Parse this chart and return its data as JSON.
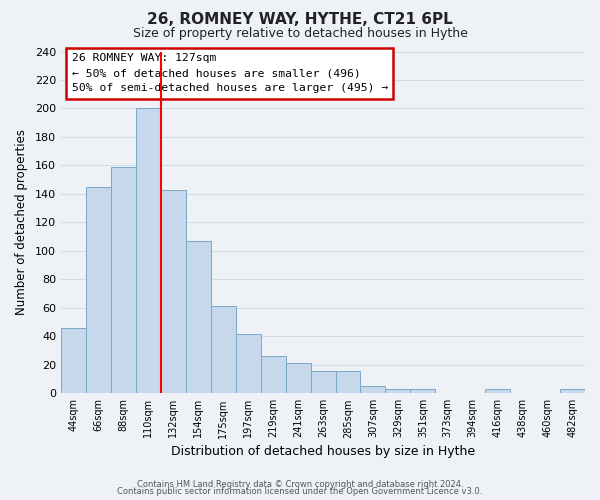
{
  "title": "26, ROMNEY WAY, HYTHE, CT21 6PL",
  "subtitle": "Size of property relative to detached houses in Hythe",
  "xlabel": "Distribution of detached houses by size in Hythe",
  "ylabel": "Number of detached properties",
  "bar_labels": [
    "44sqm",
    "66sqm",
    "88sqm",
    "110sqm",
    "132sqm",
    "154sqm",
    "175sqm",
    "197sqm",
    "219sqm",
    "241sqm",
    "263sqm",
    "285sqm",
    "307sqm",
    "329sqm",
    "351sqm",
    "373sqm",
    "394sqm",
    "416sqm",
    "438sqm",
    "460sqm",
    "482sqm"
  ],
  "bar_values": [
    46,
    145,
    159,
    200,
    143,
    107,
    61,
    42,
    26,
    21,
    16,
    16,
    5,
    3,
    3,
    0,
    0,
    3,
    0,
    0,
    3
  ],
  "bar_color": "#c8d8ec",
  "bar_edge_color": "#7ba8c8",
  "red_line_x": 3.5,
  "ylim": [
    0,
    240
  ],
  "yticks": [
    0,
    20,
    40,
    60,
    80,
    100,
    120,
    140,
    160,
    180,
    200,
    220,
    240
  ],
  "annotation_title": "26 ROMNEY WAY: 127sqm",
  "annotation_line1": "← 50% of detached houses are smaller (496)",
  "annotation_line2": "50% of semi-detached houses are larger (495) →",
  "annotation_box_facecolor": "#ffffff",
  "annotation_border_color": "#cc0000",
  "footer_line1": "Contains HM Land Registry data © Crown copyright and database right 2024.",
  "footer_line2": "Contains public sector information licensed under the Open Government Licence v3.0.",
  "grid_color": "#d0dce8",
  "background_color": "#eef2f7",
  "plot_bg_color": "#eef2f7",
  "title_fontsize": 11,
  "subtitle_fontsize": 9
}
